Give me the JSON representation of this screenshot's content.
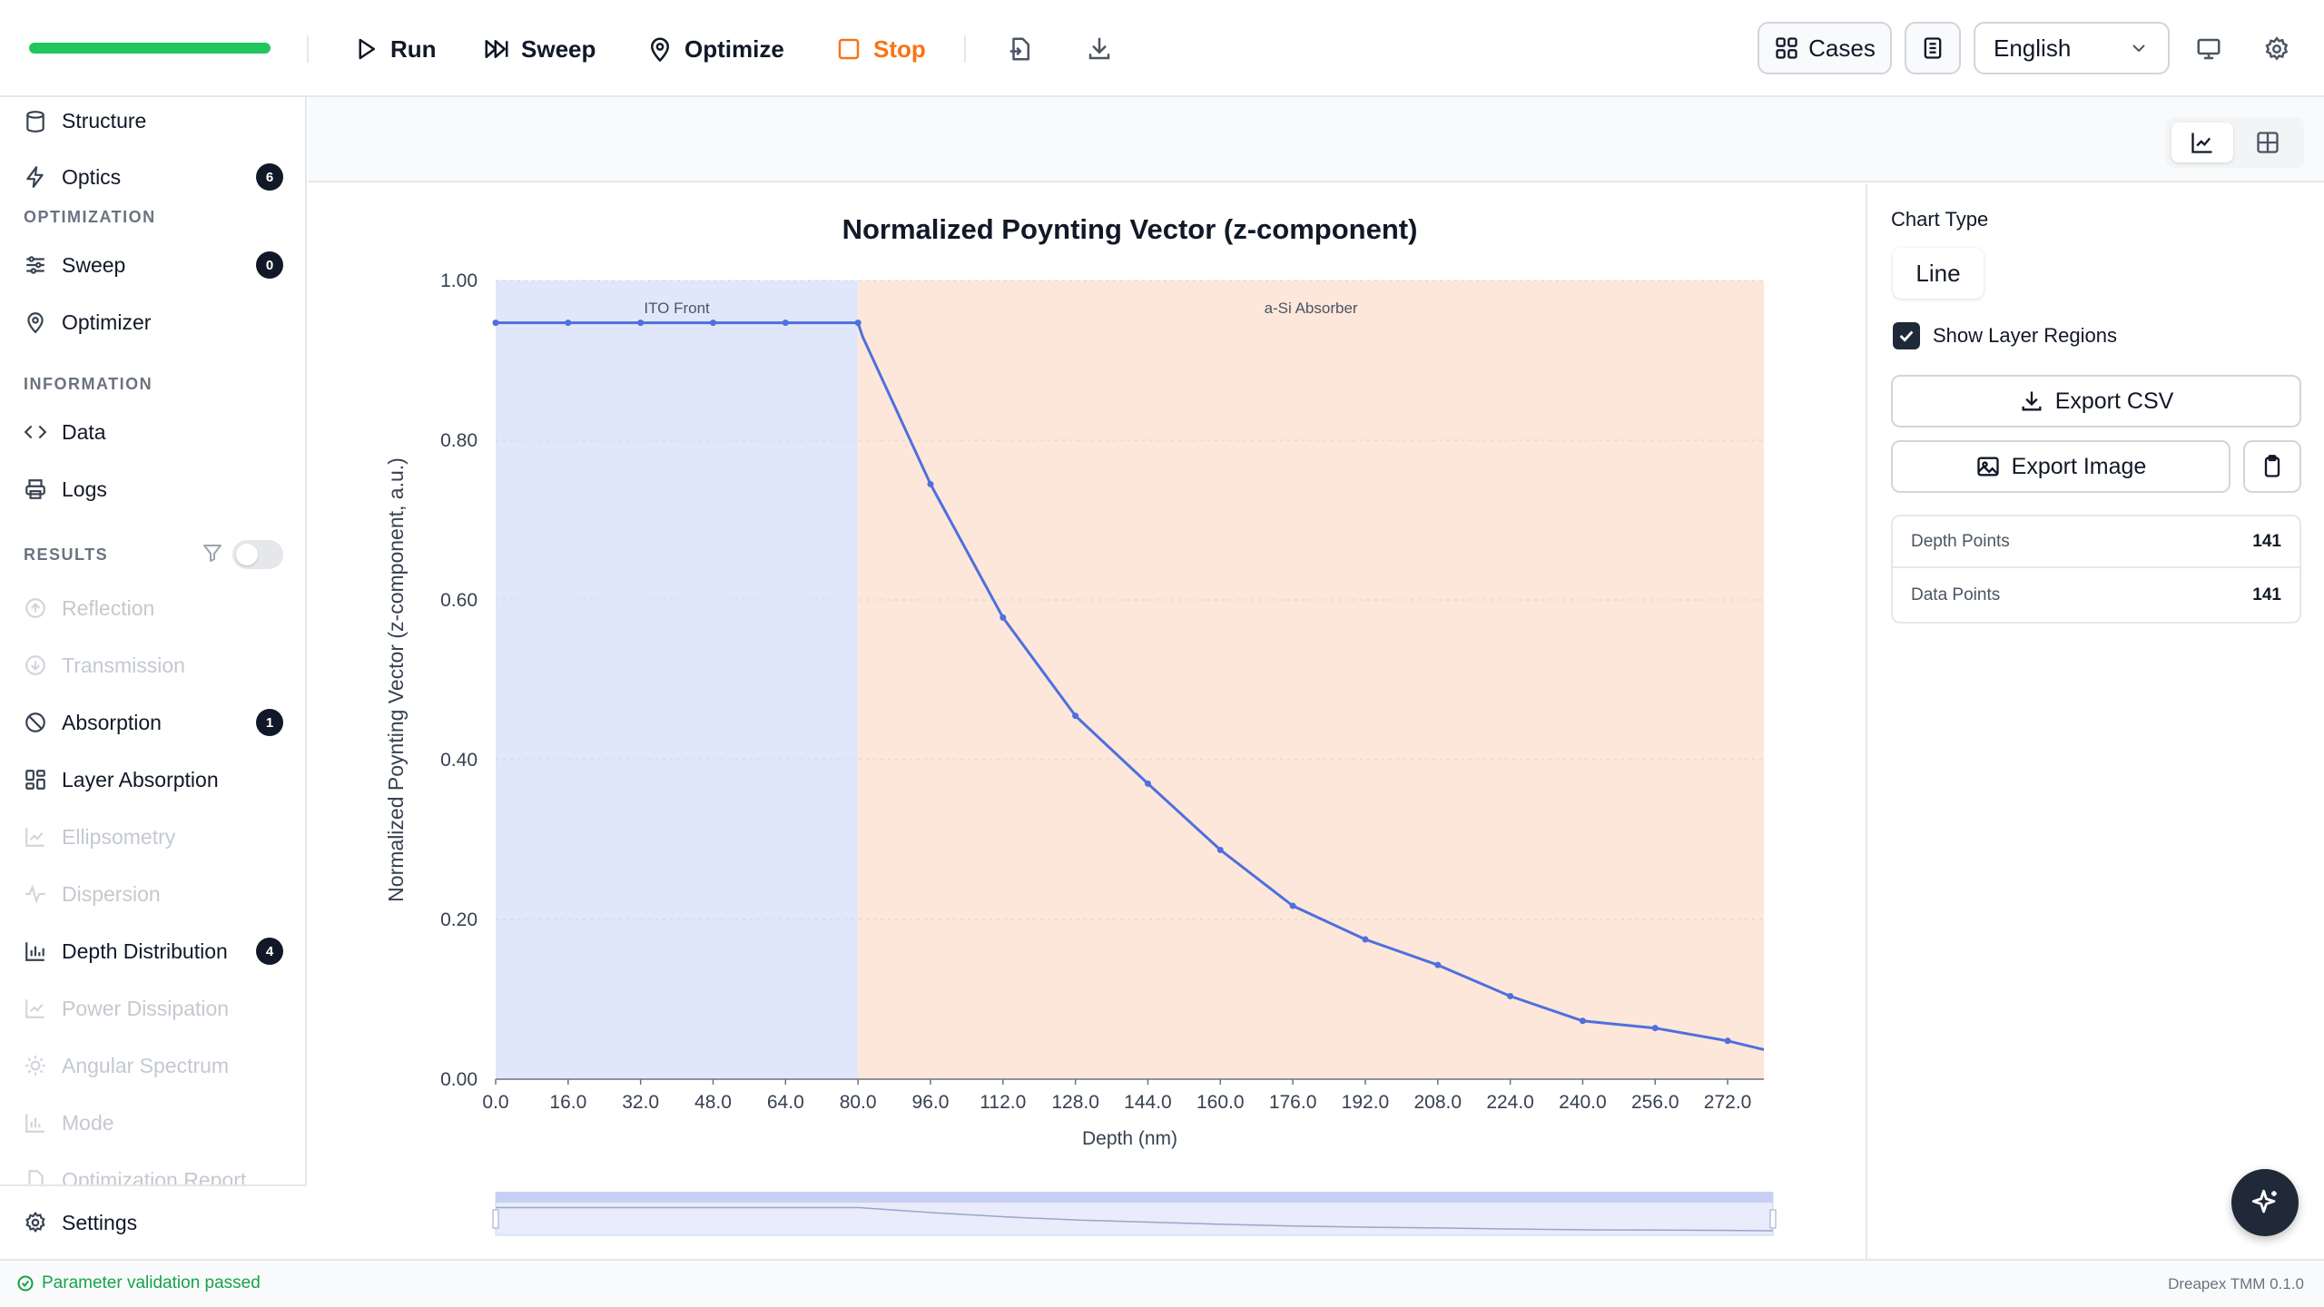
{
  "toolbar": {
    "run": "Run",
    "sweep": "Sweep",
    "optimize": "Optimize",
    "stop": "Stop",
    "cases": "Cases",
    "language": "English",
    "progress_fraction": 1.0,
    "accent_green": "#22c55e",
    "stop_color": "#f97316"
  },
  "sidebar": {
    "items_top": [
      {
        "label": "Structure",
        "icon": "database-icon"
      },
      {
        "label": "Optics",
        "icon": "bolt-icon",
        "badge": "6"
      }
    ],
    "optimization_title": "OPTIMIZATION",
    "optimization": [
      {
        "label": "Sweep",
        "icon": "sliders-icon",
        "badge": "0"
      },
      {
        "label": "Optimizer",
        "icon": "pin-icon"
      }
    ],
    "information_title": "INFORMATION",
    "information": [
      {
        "label": "Data",
        "icon": "code-icon"
      },
      {
        "label": "Logs",
        "icon": "printer-icon"
      }
    ],
    "results_title": "RESULTS",
    "results_toggle_on": false,
    "results": [
      {
        "label": "Reflection",
        "disabled": true
      },
      {
        "label": "Transmission",
        "disabled": true
      },
      {
        "label": "Absorption",
        "disabled": false,
        "badge": "1"
      },
      {
        "label": "Layer Absorption",
        "disabled": false
      },
      {
        "label": "Ellipsometry",
        "disabled": true
      },
      {
        "label": "Dispersion",
        "disabled": true
      },
      {
        "label": "Depth Distribution",
        "disabled": false,
        "badge": "4"
      },
      {
        "label": "Power Dissipation",
        "disabled": true
      },
      {
        "label": "Angular Spectrum",
        "disabled": true
      },
      {
        "label": "Mode",
        "disabled": true
      },
      {
        "label": "Optimization Report",
        "disabled": true
      }
    ],
    "settings": "Settings"
  },
  "panel": {
    "chart_type_label": "Chart Type",
    "chart_type_value": "Line",
    "show_layer_regions": "Show Layer Regions",
    "show_layer_regions_checked": true,
    "export_csv": "Export CSV",
    "export_image": "Export Image",
    "stats": [
      {
        "label": "Depth Points",
        "value": "141"
      },
      {
        "label": "Data Points",
        "value": "141"
      }
    ]
  },
  "status": {
    "message": "Parameter validation passed",
    "version": "Dreapex TMM 0.1.0"
  },
  "chart_data": {
    "type": "line",
    "title": "Normalized Poynting Vector (z-component)",
    "xlabel": "Depth (nm)",
    "ylabel": "Normalized Poynting Vector (z-component, a.u.)",
    "xlim": [
      0,
      280
    ],
    "ylim": [
      0,
      1.0
    ],
    "x_ticks": [
      "0.0",
      "16.0",
      "32.0",
      "48.0",
      "64.0",
      "80.0",
      "96.0",
      "112.0",
      "128.0",
      "144.0",
      "160.0",
      "176.0",
      "192.0",
      "208.0",
      "224.0",
      "240.0",
      "256.0",
      "272.0"
    ],
    "y_ticks": [
      "0.00",
      "0.20",
      "0.40",
      "0.60",
      "0.80",
      "1.00"
    ],
    "grid": true,
    "regions": [
      {
        "name": "ITO Front",
        "start": 0,
        "end": 80,
        "color": "#e0e7fb"
      },
      {
        "name": "a-Si Absorber",
        "start": 80,
        "end": 280,
        "color": "#fce7da"
      }
    ],
    "series": [
      {
        "color": "#4f6fde",
        "x": [
          0,
          16,
          32,
          48,
          64,
          80,
          81,
          96,
          112,
          128,
          144,
          160,
          176,
          192,
          208,
          224,
          240,
          256,
          272,
          280
        ],
        "y": [
          0.947,
          0.947,
          0.947,
          0.947,
          0.947,
          0.947,
          0.93,
          0.745,
          0.578,
          0.455,
          0.37,
          0.287,
          0.217,
          0.175,
          0.143,
          0.104,
          0.073,
          0.064,
          0.048,
          0.037
        ]
      }
    ],
    "minimap": true
  }
}
